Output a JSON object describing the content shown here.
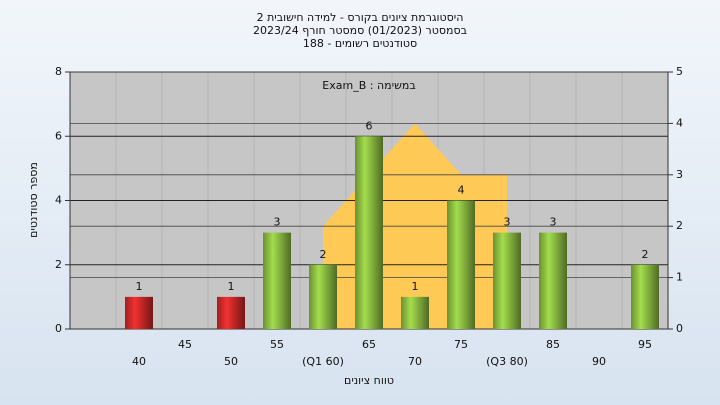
{
  "chart_data": {
    "type": "bar",
    "title": [
      "היסטוגרמת ציונים בקורס - למידה חישובית 2",
      "בסמסטר  (01/2023)  סמסטר חורף 2023/24",
      "סטודנטים רשומים - 188"
    ],
    "annotation": "במשימה : Exam_B",
    "xlabel": "טווח ציונים",
    "ylabel": "מספר סטודנטים",
    "categories": [
      null,
      "40",
      "45",
      "50",
      "55",
      "(Q1 60)",
      "65",
      "70",
      "75",
      "(Q3 80)",
      "85",
      "90",
      "95"
    ],
    "series": [
      {
        "type": "bar",
        "values": [
          null,
          1,
          null,
          1,
          3,
          2,
          6,
          1,
          4,
          3,
          3,
          null,
          2
        ],
        "colors": [
          null,
          "#d42a2a",
          null,
          "#d42a2a",
          "#8fc043",
          "#8fc043",
          "#8fc043",
          "#8fc043",
          "#8fc043",
          "#8fc043",
          "#8fc043",
          null,
          "#8fc043"
        ]
      },
      {
        "type": "area",
        "axis": "y2",
        "color": "#ffc955",
        "values": [
          null,
          null,
          null,
          null,
          null,
          2,
          3,
          4,
          3,
          3,
          null,
          null,
          null
        ]
      }
    ],
    "ylim": [
      0,
      8
    ],
    "yticks": [
      0,
      2,
      4,
      6,
      8
    ],
    "y2lim": [
      0,
      5
    ],
    "y2ticks": [
      0,
      1,
      2,
      3,
      4,
      5
    ],
    "grid": true
  }
}
